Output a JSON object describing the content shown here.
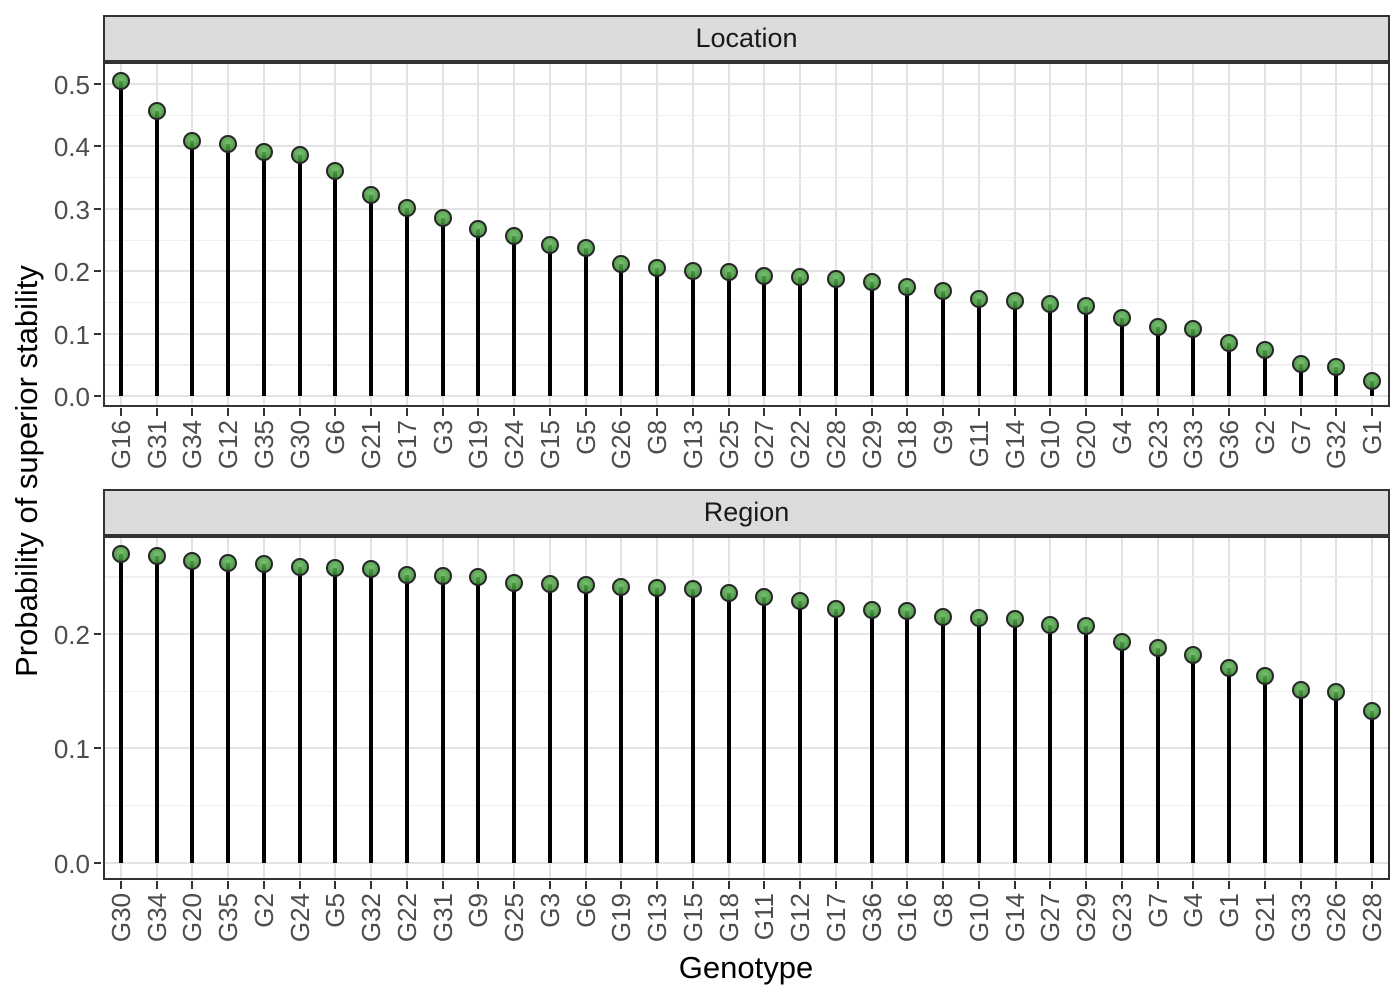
{
  "figure": {
    "x_axis_title": "Genotype",
    "y_axis_title": "Probability of superior stability"
  },
  "colors": {
    "point_fill": "#4da44a",
    "point_border": "#262626",
    "stem": "#000000",
    "strip_background": "#dcdcdc",
    "panel_border": "#333333",
    "grid_major": "#e3e3e3",
    "grid_minor": "#efefef",
    "tick_text": "#4d4d4d"
  },
  "chart_data": [
    {
      "type": "scatter",
      "subtype": "lollipop-stem",
      "panel": "Location",
      "xlabel": "Genotype",
      "ylabel": "Probability of superior stability",
      "grid": true,
      "yticks": [
        0.0,
        0.1,
        0.2,
        0.3,
        0.4,
        0.5
      ],
      "ylim": [
        -0.018,
        0.535
      ],
      "categories": [
        "G16",
        "G31",
        "G34",
        "G12",
        "G35",
        "G30",
        "G6",
        "G21",
        "G17",
        "G3",
        "G19",
        "G24",
        "G15",
        "G5",
        "G26",
        "G8",
        "G13",
        "G25",
        "G27",
        "G22",
        "G28",
        "G29",
        "G18",
        "G9",
        "G11",
        "G14",
        "G10",
        "G20",
        "G4",
        "G23",
        "G33",
        "G36",
        "G2",
        "G7",
        "G32",
        "G1"
      ],
      "values": [
        0.505,
        0.457,
        0.408,
        0.404,
        0.391,
        0.386,
        0.361,
        0.322,
        0.301,
        0.285,
        0.267,
        0.256,
        0.242,
        0.237,
        0.212,
        0.205,
        0.201,
        0.198,
        0.193,
        0.191,
        0.188,
        0.182,
        0.174,
        0.168,
        0.156,
        0.153,
        0.148,
        0.145,
        0.125,
        0.11,
        0.107,
        0.085,
        0.074,
        0.051,
        0.047,
        0.024
      ]
    },
    {
      "type": "scatter",
      "subtype": "lollipop-stem",
      "panel": "Region",
      "xlabel": "Genotype",
      "ylabel": "Probability of superior stability",
      "grid": true,
      "yticks": [
        0.0,
        0.1,
        0.2
      ],
      "ylim": [
        -0.015,
        0.286
      ],
      "categories": [
        "G30",
        "G34",
        "G20",
        "G35",
        "G2",
        "G24",
        "G5",
        "G32",
        "G22",
        "G31",
        "G9",
        "G25",
        "G3",
        "G6",
        "G19",
        "G13",
        "G15",
        "G18",
        "G11",
        "G12",
        "G17",
        "G36",
        "G16",
        "G8",
        "G10",
        "G14",
        "G27",
        "G29",
        "G23",
        "G7",
        "G4",
        "G1",
        "G21",
        "G33",
        "G26",
        "G28"
      ],
      "values": [
        0.27,
        0.268,
        0.264,
        0.262,
        0.261,
        0.259,
        0.258,
        0.257,
        0.252,
        0.251,
        0.25,
        0.245,
        0.244,
        0.243,
        0.241,
        0.24,
        0.239,
        0.236,
        0.232,
        0.229,
        0.222,
        0.221,
        0.22,
        0.215,
        0.214,
        0.213,
        0.208,
        0.207,
        0.193,
        0.188,
        0.182,
        0.17,
        0.163,
        0.151,
        0.149,
        0.133
      ]
    }
  ]
}
